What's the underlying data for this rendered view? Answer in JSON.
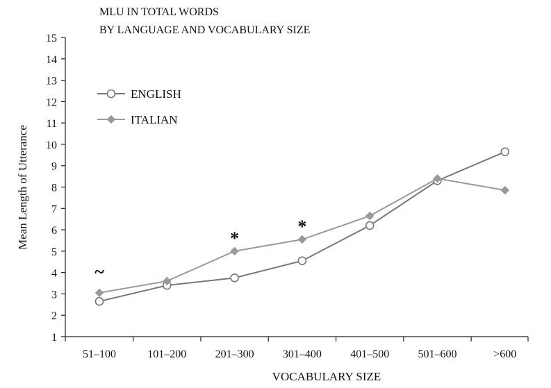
{
  "chart_data": {
    "type": "line",
    "title_lines": [
      "MLU IN TOTAL WORDS",
      "BY LANGUAGE AND VOCABULARY SIZE"
    ],
    "xlabel": "VOCABULARY SIZE",
    "ylabel": "Mean Length of Utterance",
    "categories": [
      "51–100",
      "101–200",
      "201–300",
      "301–400",
      "401–500",
      "501–600",
      ">600"
    ],
    "ylim": [
      1,
      15
    ],
    "yticks": [
      1,
      2,
      3,
      4,
      5,
      6,
      7,
      8,
      9,
      10,
      11,
      12,
      13,
      14,
      15
    ],
    "grid": false,
    "legend_position": "upper-left",
    "series": [
      {
        "name": "ENGLISH",
        "marker": "open-circle",
        "color": "#777777",
        "values": [
          2.65,
          3.4,
          3.75,
          4.55,
          6.2,
          8.3,
          9.65
        ]
      },
      {
        "name": "ITALIAN",
        "marker": "diamond",
        "color": "#999999",
        "values": [
          3.05,
          3.6,
          5.0,
          5.55,
          6.65,
          8.4,
          7.85
        ]
      }
    ],
    "annotations": [
      {
        "category": "51–100",
        "text": "~"
      },
      {
        "category": "201–300",
        "text": "*"
      },
      {
        "category": "301–400",
        "text": "*"
      }
    ]
  }
}
